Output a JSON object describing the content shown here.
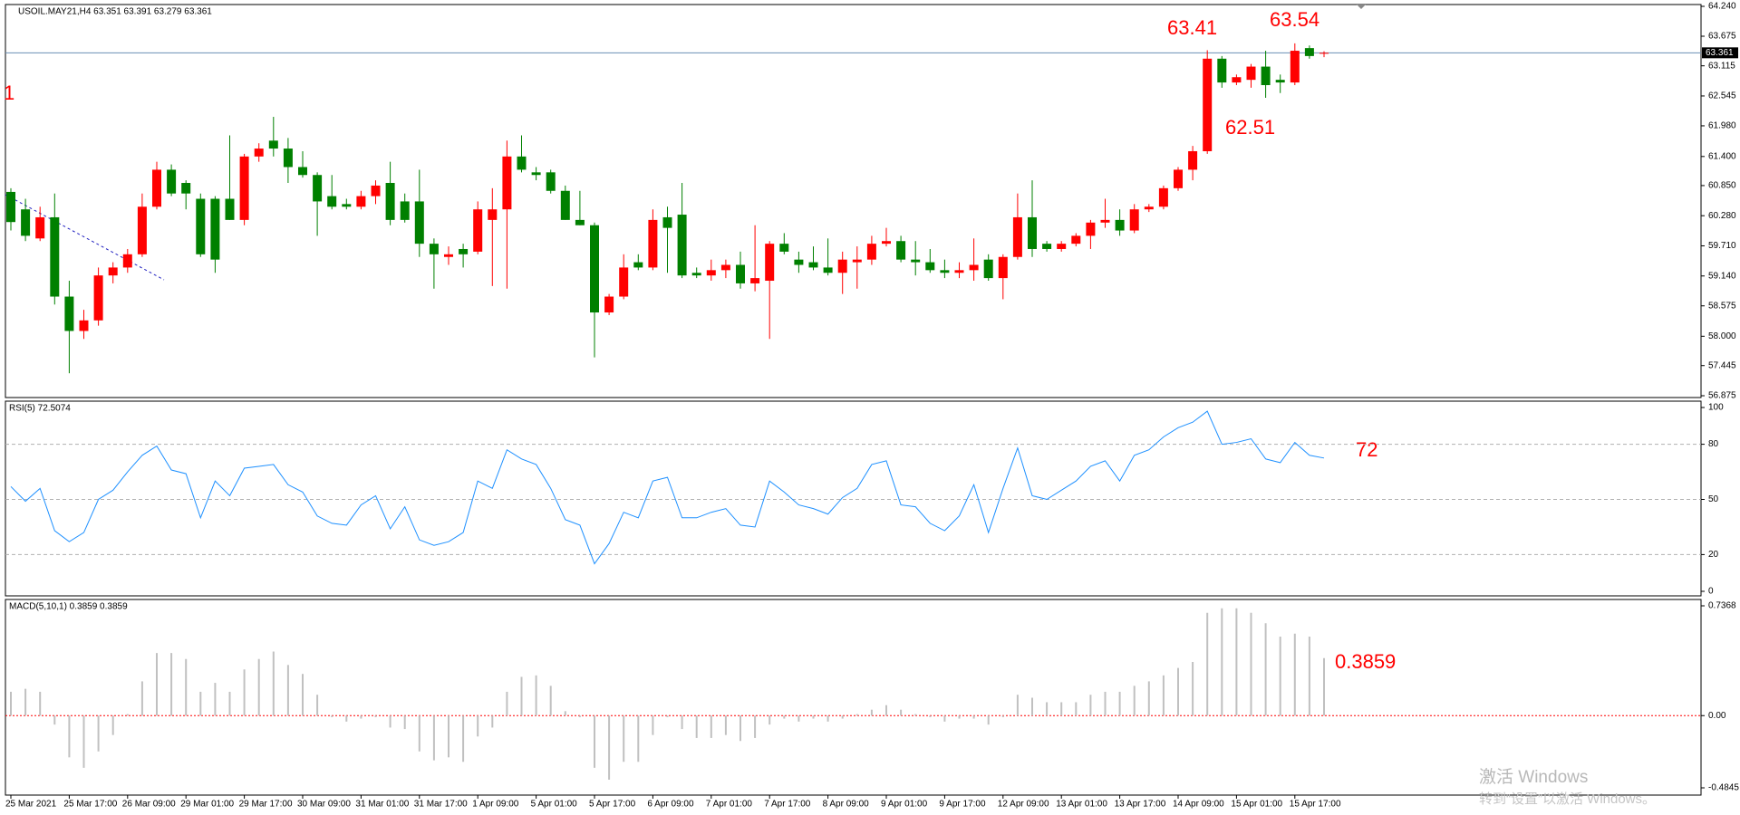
{
  "chart_data": [
    {
      "type": "candlestick",
      "title": "USOIL.MAY21,H4 63.351 63.391 63.279 63.361",
      "x_labels": [
        "25 Mar 2021",
        "25 Mar 17:00",
        "26 Mar 09:00",
        "29 Mar 01:00",
        "29 Mar 17:00",
        "30 Mar 09:00",
        "31 Mar 01:00",
        "31 Mar 17:00",
        "1 Apr 09:00",
        "5 Apr 01:00",
        "5 Apr 17:00",
        "6 Apr 09:00",
        "7 Apr 01:00",
        "7 Apr 17:00",
        "8 Apr 09:00",
        "9 Apr 01:00",
        "9 Apr 17:00",
        "12 Apr 09:00",
        "13 Apr 01:00",
        "13 Apr 17:00",
        "14 Apr 09:00",
        "15 Apr 01:00",
        "15 Apr 17:00"
      ],
      "open": [
        60.73,
        60.4,
        59.85,
        60.25,
        58.75,
        58.1,
        58.3,
        59.15,
        59.3,
        59.55,
        60.45,
        61.15,
        60.9,
        60.6,
        60.6,
        60.6,
        60.2,
        61.4,
        61.7,
        61.55,
        61.2,
        61.05,
        60.65,
        60.5,
        60.45,
        60.65,
        60.9,
        60.55,
        60.55,
        59.75,
        59.5,
        59.65,
        59.6,
        60.2,
        60.4,
        61.4,
        61.1,
        61.1,
        60.75,
        60.2,
        60.1,
        58.45,
        58.75,
        59.4,
        59.3,
        60.25,
        60.3,
        59.2,
        59.15,
        59.25,
        59.35,
        59.0,
        59.05,
        59.75,
        59.45,
        59.4,
        59.3,
        59.2,
        59.4,
        59.45,
        59.75,
        59.8,
        59.45,
        59.4,
        59.25,
        59.2,
        59.25,
        59.45,
        59.1,
        59.5,
        60.25,
        59.75,
        59.65,
        59.75,
        59.9,
        60.15,
        60.2,
        60.0,
        60.4,
        60.45,
        60.8,
        61.15,
        61.5,
        63.25,
        62.8,
        62.85,
        63.1,
        62.85,
        62.8,
        63.45,
        63.351
      ],
      "high": [
        60.8,
        60.6,
        60.45,
        60.7,
        59.05,
        58.5,
        59.3,
        59.4,
        59.65,
        60.7,
        61.3,
        61.25,
        60.95,
        60.7,
        60.65,
        61.8,
        61.45,
        61.65,
        62.15,
        61.75,
        61.5,
        61.1,
        61.05,
        60.6,
        60.75,
        60.95,
        61.3,
        60.7,
        61.15,
        59.85,
        59.7,
        59.75,
        60.55,
        60.8,
        61.7,
        61.8,
        61.2,
        61.15,
        60.85,
        60.75,
        60.15,
        58.8,
        59.55,
        59.55,
        60.4,
        60.45,
        60.9,
        59.3,
        59.45,
        59.45,
        59.6,
        60.1,
        59.8,
        59.95,
        59.6,
        59.7,
        59.85,
        59.6,
        59.7,
        59.9,
        60.05,
        59.9,
        59.8,
        59.65,
        59.45,
        59.4,
        59.85,
        59.55,
        59.55,
        60.7,
        60.95,
        59.8,
        59.8,
        59.95,
        60.2,
        60.6,
        60.4,
        60.5,
        60.5,
        60.85,
        61.2,
        61.6,
        63.41,
        63.3,
        62.95,
        63.15,
        63.4,
        62.95,
        63.54,
        63.5,
        63.391
      ],
      "low": [
        60.0,
        59.8,
        59.8,
        58.6,
        57.3,
        57.95,
        58.2,
        59.0,
        59.2,
        59.5,
        60.4,
        60.65,
        60.4,
        59.5,
        59.2,
        60.2,
        60.1,
        61.3,
        61.4,
        60.9,
        61.0,
        59.9,
        60.4,
        60.4,
        60.4,
        60.5,
        60.1,
        60.15,
        59.5,
        58.9,
        59.35,
        59.3,
        59.55,
        58.95,
        58.9,
        61.1,
        60.95,
        60.7,
        60.2,
        60.1,
        57.6,
        58.4,
        58.7,
        59.25,
        59.25,
        59.2,
        59.1,
        59.1,
        59.05,
        59.1,
        58.9,
        58.85,
        57.95,
        59.55,
        59.2,
        59.25,
        59.15,
        58.8,
        58.9,
        59.35,
        59.7,
        59.4,
        59.15,
        59.2,
        59.1,
        59.1,
        59.05,
        59.05,
        58.7,
        59.45,
        59.5,
        59.6,
        59.6,
        59.7,
        59.65,
        60.05,
        59.9,
        59.95,
        60.35,
        60.4,
        60.75,
        60.95,
        61.45,
        62.7,
        62.75,
        62.7,
        62.51,
        62.6,
        62.75,
        63.25,
        63.279
      ],
      "close": [
        60.16,
        59.9,
        60.25,
        58.75,
        58.1,
        58.3,
        59.15,
        59.3,
        59.55,
        60.45,
        61.15,
        60.7,
        60.7,
        59.55,
        59.45,
        60.2,
        61.4,
        61.55,
        61.55,
        61.2,
        61.05,
        60.55,
        60.45,
        60.45,
        60.65,
        60.85,
        60.2,
        60.2,
        59.75,
        59.55,
        59.55,
        59.55,
        60.4,
        60.4,
        61.4,
        61.15,
        61.05,
        60.75,
        60.2,
        60.1,
        58.45,
        58.75,
        59.3,
        59.3,
        60.2,
        60.05,
        59.15,
        59.15,
        59.25,
        59.35,
        59.0,
        59.1,
        59.75,
        59.6,
        59.35,
        59.3,
        59.2,
        59.45,
        59.45,
        59.75,
        59.8,
        59.45,
        59.4,
        59.25,
        59.2,
        59.25,
        59.35,
        59.1,
        59.5,
        60.25,
        59.65,
        59.65,
        59.75,
        59.9,
        60.15,
        60.2,
        60.0,
        60.4,
        60.45,
        60.8,
        61.15,
        61.5,
        63.25,
        62.8,
        62.9,
        63.1,
        62.75,
        62.8,
        63.4,
        63.3,
        63.361
      ],
      "up_color": "#ff0000",
      "down_color": "#008000",
      "current_price": 63.361,
      "price_line_color": "#6a8fb5",
      "ylim": [
        56.875,
        64.24
      ],
      "yticks": [
        {
          "value": 64.24,
          "label": "64.240"
        },
        63.675,
        63.115,
        62.545,
        {
          "value": 61.98,
          "label": "61.980"
        },
        {
          "value": 61.4,
          "label": "61.400"
        },
        {
          "value": 60.85,
          "label": "60.850"
        },
        {
          "value": 60.28,
          "label": "60.280"
        },
        {
          "value": 59.71,
          "label": "59.710"
        },
        {
          "value": 59.14,
          "label": "59.140"
        },
        58.575,
        {
          "value": 58,
          "label": "58.000"
        },
        57.445,
        56.875
      ],
      "annotations": [
        "63.41",
        "63.54",
        "62.51",
        "1"
      ]
    },
    {
      "type": "line",
      "title": "RSI(5) 72.5074",
      "color": "#1e90ff",
      "values": [
        57,
        49,
        56,
        33,
        27,
        32,
        50,
        55,
        65,
        74,
        79,
        66,
        64,
        40,
        60,
        52,
        67,
        68,
        69,
        58,
        54,
        41,
        37,
        36,
        47,
        52,
        34,
        46,
        28,
        25,
        27,
        32,
        60,
        56,
        77,
        72,
        69,
        56,
        39,
        36,
        15,
        26,
        43,
        40,
        60,
        62,
        40,
        40,
        43,
        45,
        36,
        35,
        60,
        54,
        47,
        45,
        42,
        51,
        56,
        69,
        71,
        47,
        46,
        37,
        33,
        41,
        58,
        32,
        56,
        78,
        52,
        50,
        55,
        60,
        68,
        71,
        60,
        74,
        77,
        84,
        89,
        92,
        98,
        80,
        81,
        83,
        72,
        70,
        81,
        74,
        72.5074
      ],
      "ylim": [
        0,
        100
      ],
      "yticks": [
        0,
        20,
        50,
        80,
        100
      ],
      "grid": [
        20,
        50,
        80
      ],
      "annotations": [
        "72"
      ]
    },
    {
      "type": "bar",
      "title": "MACD(5,10,1) 0.3859 0.3859",
      "color": "#c0c0c0",
      "zero_color": "#ff0000",
      "values": [
        0.16,
        0.18,
        0.16,
        -0.06,
        -0.28,
        -0.35,
        -0.24,
        -0.13,
        0.01,
        0.23,
        0.42,
        0.42,
        0.38,
        0.16,
        0.22,
        0.16,
        0.31,
        0.38,
        0.43,
        0.34,
        0.28,
        0.14,
        -0.01,
        -0.04,
        -0.02,
        -0.01,
        -0.08,
        -0.09,
        -0.24,
        -0.3,
        -0.28,
        -0.31,
        -0.14,
        -0.08,
        0.16,
        0.26,
        0.27,
        0.2,
        0.03,
        -0.01,
        -0.35,
        -0.43,
        -0.31,
        -0.31,
        -0.13,
        -0.01,
        -0.09,
        -0.15,
        -0.15,
        -0.13,
        -0.17,
        -0.15,
        -0.06,
        -0.02,
        -0.04,
        -0.02,
        -0.04,
        -0.02,
        0.01,
        0.04,
        0.07,
        0.04,
        0.01,
        -0.01,
        -0.04,
        -0.02,
        -0.02,
        -0.06,
        -0.01,
        0.14,
        0.12,
        0.09,
        0.09,
        0.09,
        0.14,
        0.16,
        0.16,
        0.2,
        0.23,
        0.27,
        0.32,
        0.36,
        0.69,
        0.72,
        0.72,
        0.69,
        0.62,
        0.53,
        0.55,
        0.53,
        0.3859
      ],
      "ylim": [
        -0.4845,
        0.7368
      ],
      "yticks": [
        -0.4845,
        {
          "value": 0,
          "label": "0.00"
        },
        0.7368
      ],
      "annotations": [
        "0.3859"
      ]
    }
  ],
  "watermark": {
    "line1": "激活 Windows",
    "line2": "转到“设置”以激活 Windows。"
  }
}
